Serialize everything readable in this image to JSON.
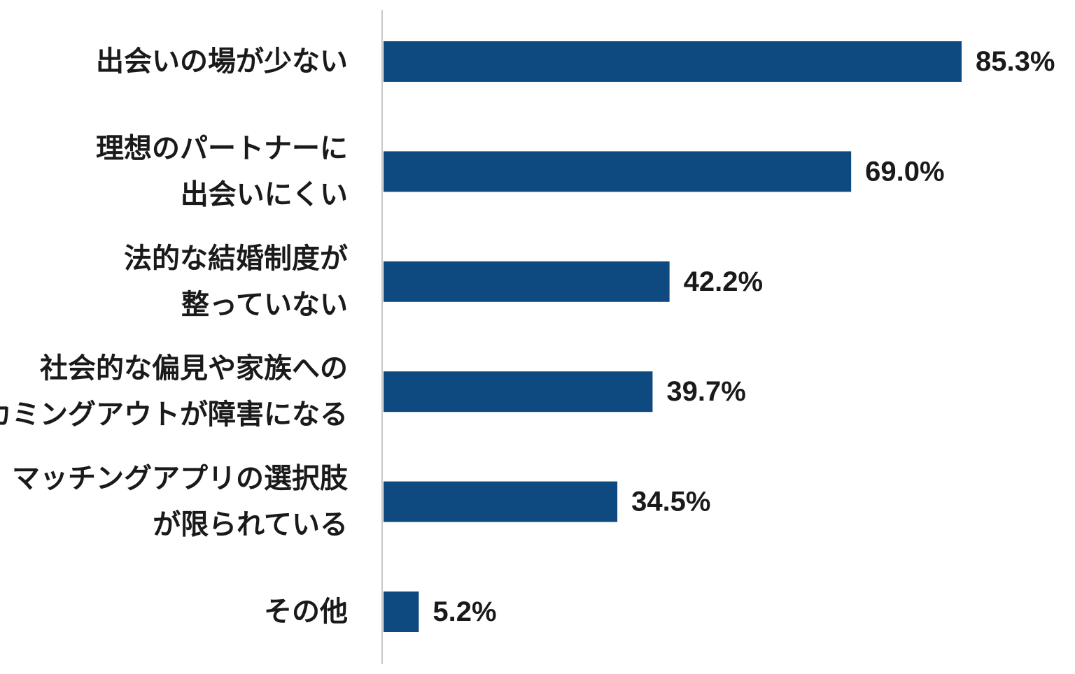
{
  "chart_data": {
    "type": "bar",
    "orientation": "horizontal",
    "categories": [
      [
        "出会いの場が少ない"
      ],
      [
        "理想のパートナーに",
        "出会いにくい"
      ],
      [
        "法的な結婚制度が",
        "整っていない"
      ],
      [
        "社会的な偏見や家族への",
        "カミングアウトが障害になる"
      ],
      [
        "マッチングアプリの選択肢",
        "が限られている"
      ],
      [
        "その他"
      ]
    ],
    "values": [
      85.3,
      69.0,
      42.2,
      39.7,
      34.5,
      5.2
    ],
    "value_labels": [
      "85.3%",
      "69.0%",
      "42.2%",
      "39.7%",
      "34.5%",
      "5.2%"
    ],
    "xlim": [
      0,
      100
    ],
    "grid": false,
    "legend": "none",
    "colors": {
      "bar": "#0e4a80",
      "axis": "#c8c8c8",
      "text": "#1a1a1a"
    }
  }
}
